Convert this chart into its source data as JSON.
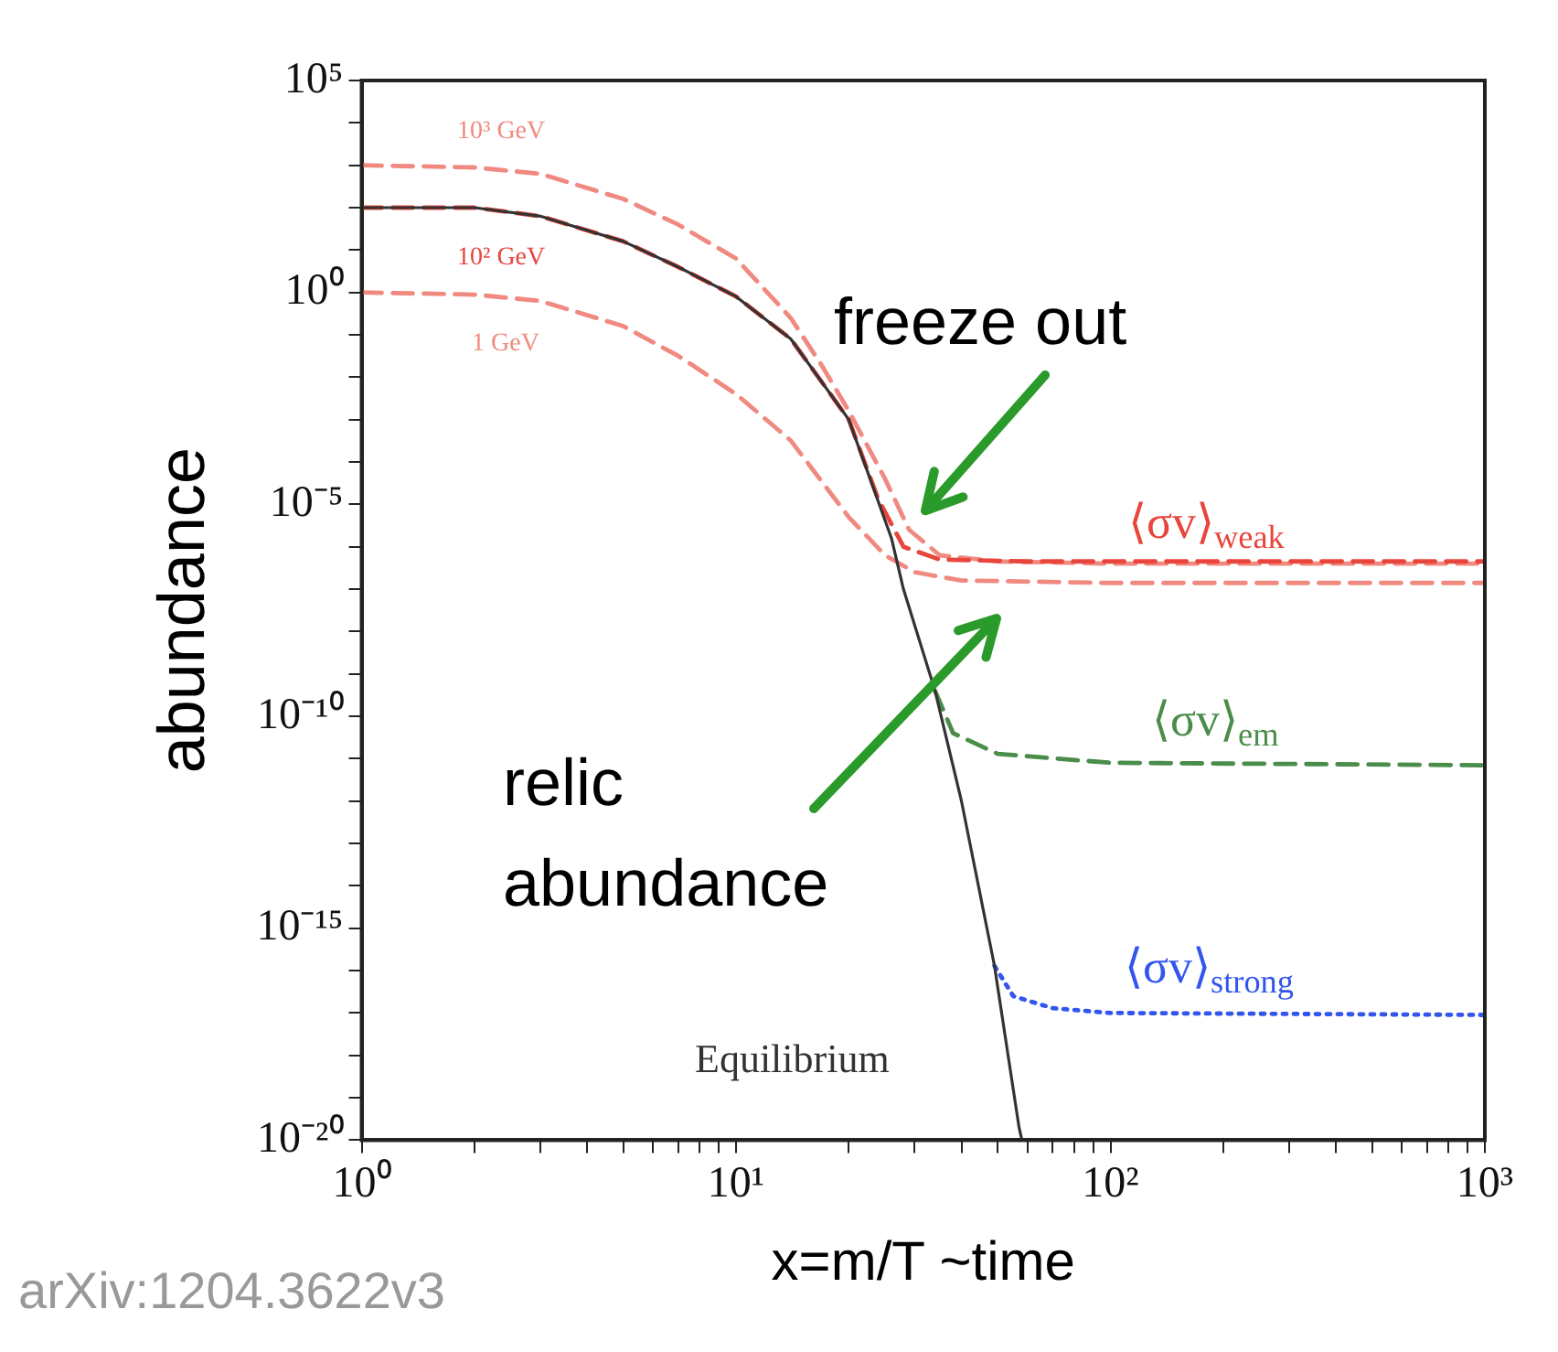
{
  "chart_data": {
    "type": "line",
    "xlabel": "x=m/T ~time",
    "ylabel": "abundance",
    "log": "xy",
    "grid": false,
    "xlim": [
      1,
      1000
    ],
    "ylim": [
      1e-20,
      100000
    ],
    "xticks": [
      {
        "value": 1,
        "label": "10⁰"
      },
      {
        "value": 2,
        "label": null
      },
      {
        "value": 3,
        "label": null
      },
      {
        "value": 4,
        "label": null
      },
      {
        "value": 5,
        "label": null
      },
      {
        "value": 6,
        "label": null
      },
      {
        "value": 7,
        "label": null
      },
      {
        "value": 8,
        "label": null
      },
      {
        "value": 9,
        "label": null
      },
      {
        "value": 10,
        "label": "10¹"
      },
      {
        "value": 20,
        "label": null
      },
      {
        "value": 30,
        "label": null
      },
      {
        "value": 40,
        "label": null
      },
      {
        "value": 50,
        "label": null
      },
      {
        "value": 60,
        "label": null
      },
      {
        "value": 70,
        "label": null
      },
      {
        "value": 80,
        "label": null
      },
      {
        "value": 90,
        "label": null
      },
      {
        "value": 100,
        "label": "10²"
      },
      {
        "value": 200,
        "label": null
      },
      {
        "value": 300,
        "label": null
      },
      {
        "value": 400,
        "label": null
      },
      {
        "value": 500,
        "label": null
      },
      {
        "value": 600,
        "label": null
      },
      {
        "value": 700,
        "label": null
      },
      {
        "value": 800,
        "label": null
      },
      {
        "value": 900,
        "label": null
      },
      {
        "value": 1000,
        "label": "10³"
      }
    ],
    "yticks": [
      {
        "value": 1e-20,
        "label": "10⁻²⁰"
      },
      {
        "value": 1e-19,
        "label": null
      },
      {
        "value": 1e-18,
        "label": null
      },
      {
        "value": 1e-17,
        "label": null
      },
      {
        "value": 1e-16,
        "label": null
      },
      {
        "value": 1e-15,
        "label": "10⁻¹⁵"
      },
      {
        "value": 1e-14,
        "label": null
      },
      {
        "value": 1e-13,
        "label": null
      },
      {
        "value": 1e-12,
        "label": null
      },
      {
        "value": 1e-11,
        "label": null
      },
      {
        "value": 1e-10,
        "label": "10⁻¹⁰"
      },
      {
        "value": 1e-09,
        "label": null
      },
      {
        "value": 1e-08,
        "label": null
      },
      {
        "value": 1e-07,
        "label": null
      },
      {
        "value": 1e-06,
        "label": null
      },
      {
        "value": 1e-05,
        "label": "10⁻⁵"
      },
      {
        "value": 0.0001,
        "label": null
      },
      {
        "value": 0.001,
        "label": null
      },
      {
        "value": 0.01,
        "label": null
      },
      {
        "value": 0.1,
        "label": null
      },
      {
        "value": 1,
        "label": "10⁰"
      },
      {
        "value": 10,
        "label": null
      },
      {
        "value": 100,
        "label": null
      },
      {
        "value": 1000,
        "label": null
      },
      {
        "value": 10000,
        "label": null
      },
      {
        "value": 100000,
        "label": "10⁵"
      }
    ],
    "series": [
      {
        "name": "10³ GeV",
        "color": "#f08a80",
        "line_style": "dashed",
        "x": [
          1,
          2,
          3,
          5,
          7,
          10,
          14,
          17,
          20,
          25,
          29,
          35,
          50,
          100,
          1000
        ],
        "values": [
          1000,
          890,
          630,
          160,
          40,
          6.3,
          0.25,
          0.018,
          0.0016,
          4e-05,
          2.5e-06,
          6.3e-07,
          4.5e-07,
          4e-07,
          4e-07
        ]
      },
      {
        "name": "1 GeV",
        "color": "#f08a80",
        "line_style": "dashed",
        "x": [
          1,
          2,
          3,
          5,
          7,
          10,
          14,
          20,
          25,
          30,
          40,
          100,
          1000
        ],
        "values": [
          1,
          0.89,
          0.63,
          0.16,
          0.032,
          0.004,
          0.00032,
          5e-06,
          6.3e-07,
          2.5e-07,
          1.6e-07,
          1.4e-07,
          1.4e-07
        ]
      },
      {
        "name": "10² GeV",
        "color": "#e8453c",
        "line_style": "dashed",
        "x": [
          1,
          2,
          3,
          5,
          7,
          10,
          14,
          20,
          24,
          28,
          35,
          60,
          1000
        ],
        "values": [
          100,
          100,
          63,
          16,
          4,
          0.8,
          0.08,
          0.001,
          1.3e-05,
          1e-06,
          5e-07,
          4.5e-07,
          4.5e-07
        ]
      },
      {
        "name": "⟨σv⟩$_{em}$",
        "color": "#4a8c4a",
        "line_style": "dashed",
        "x": [
          34,
          38,
          50,
          100,
          1000
        ],
        "values": [
          4e-10,
          4e-11,
          1.3e-11,
          8e-12,
          7e-12
        ]
      },
      {
        "name": "⟨σv⟩$_{strong}$",
        "color": "#3355ee",
        "line_style": "dotted",
        "x": [
          49,
          55,
          70,
          100,
          1000
        ],
        "values": [
          1.3e-16,
          2.5e-17,
          1.3e-17,
          1e-17,
          9e-18
        ]
      },
      {
        "name": "Equilibrium",
        "color": "#333333",
        "line_style": "solid",
        "x": [
          1,
          2,
          3,
          5,
          7,
          10,
          14,
          20,
          26,
          28,
          34,
          40,
          49,
          57,
          58
        ],
        "values": [
          100,
          100,
          63,
          16,
          4,
          0.8,
          0.08,
          0.001,
          1.6e-06,
          1e-07,
          4e-10,
          1e-12,
          1.3e-16,
          2e-20,
          1e-20
        ]
      }
    ],
    "annotations": [
      "⟨σv⟩$_{weak}$",
      {
        "text": "freeze out",
        "x": 29,
        "y": 2.5e-06
      },
      "relic abundance",
      "arXiv:1204.3622v3"
    ]
  }
}
